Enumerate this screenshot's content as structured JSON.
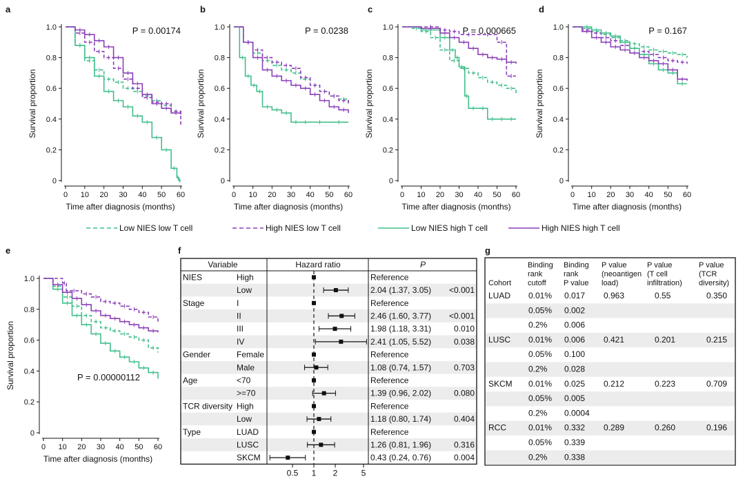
{
  "colors": {
    "green": "#3fbf8a",
    "purple": "#8a3fb8",
    "axis": "#111111",
    "stripe": "#ececec"
  },
  "axes": {
    "ylabel": "Survival proportion",
    "xlabel": "Time after diagnosis (months)",
    "yticks": [
      "0",
      "0.2",
      "0.4",
      "0.6",
      "0.8",
      "1.0"
    ],
    "xticks": [
      "0",
      "10",
      "20",
      "30",
      "40",
      "50",
      "60"
    ]
  },
  "legend": [
    {
      "label": "Low NIES low T cell",
      "color": "green",
      "dashed": true
    },
    {
      "label": "High NIES low T cell",
      "color": "purple",
      "dashed": true
    },
    {
      "label": "Low NIES high T cell",
      "color": "green",
      "dashed": false
    },
    {
      "label": "High NIES high T cell",
      "color": "purple",
      "dashed": false
    }
  ],
  "chart_data": [
    {
      "panel": "a",
      "type": "line",
      "xlabel": "Time after diagnosis (months)",
      "ylabel": "Survival proportion",
      "xlim": [
        0,
        60
      ],
      "ylim": [
        0,
        1
      ],
      "annotation": "P = 0.00174",
      "series": [
        {
          "name": "Low NIES low T cell",
          "x": [
            0,
            5,
            10,
            15,
            20,
            25,
            30,
            35,
            40,
            45,
            50,
            55,
            60
          ],
          "y": [
            1,
            0.88,
            0.78,
            0.72,
            0.66,
            0.64,
            0.6,
            0.58,
            0.55,
            0.52,
            0.49,
            0.45,
            0.42
          ]
        },
        {
          "name": "High NIES low T cell",
          "x": [
            0,
            5,
            10,
            15,
            20,
            25,
            30,
            35,
            40,
            45,
            50,
            55,
            60
          ],
          "y": [
            1,
            0.96,
            0.9,
            0.84,
            0.8,
            0.73,
            0.66,
            0.6,
            0.54,
            0.51,
            0.5,
            0.45,
            0.35
          ]
        },
        {
          "name": "Low NIES high T cell",
          "x": [
            0,
            5,
            10,
            15,
            20,
            25,
            30,
            35,
            40,
            45,
            50,
            55,
            58,
            59,
            60
          ],
          "y": [
            1,
            0.88,
            0.8,
            0.68,
            0.58,
            0.52,
            0.48,
            0.42,
            0.38,
            0.28,
            0.2,
            0.08,
            0.02,
            0.0,
            0.0
          ]
        },
        {
          "name": "High NIES high T cell",
          "x": [
            0,
            5,
            10,
            15,
            20,
            25,
            30,
            35,
            40,
            45,
            50,
            55,
            60
          ],
          "y": [
            1,
            0.98,
            0.95,
            0.91,
            0.87,
            0.8,
            0.7,
            0.63,
            0.56,
            0.5,
            0.47,
            0.44,
            0.43
          ]
        }
      ]
    },
    {
      "panel": "b",
      "type": "line",
      "xlabel": "Time after diagnosis (months)",
      "ylabel": "Survival proportion",
      "xlim": [
        0,
        60
      ],
      "ylim": [
        0,
        1
      ],
      "annotation": "P = 0.0238",
      "series": [
        {
          "name": "Low NIES low T cell",
          "x": [
            0,
            5,
            10,
            15,
            20,
            25,
            30,
            35,
            40,
            45,
            50,
            55,
            60
          ],
          "y": [
            1,
            0.9,
            0.83,
            0.78,
            0.75,
            0.72,
            0.7,
            0.66,
            0.62,
            0.58,
            0.55,
            0.53,
            0.5
          ]
        },
        {
          "name": "High NIES low T cell",
          "x": [
            0,
            5,
            10,
            15,
            20,
            25,
            30,
            35,
            40,
            45,
            50,
            55,
            60
          ],
          "y": [
            1,
            0.9,
            0.85,
            0.8,
            0.77,
            0.75,
            0.73,
            0.67,
            0.62,
            0.58,
            0.55,
            0.52,
            0.5
          ]
        },
        {
          "name": "Low NIES high T cell",
          "x": [
            0,
            3,
            6,
            9,
            12,
            15,
            20,
            25,
            30,
            35,
            40,
            50,
            60
          ],
          "y": [
            1,
            0.8,
            0.68,
            0.62,
            0.58,
            0.48,
            0.46,
            0.44,
            0.38,
            0.38,
            0.38,
            0.38,
            0.38
          ]
        },
        {
          "name": "High NIES high T cell",
          "x": [
            0,
            5,
            10,
            15,
            20,
            25,
            30,
            35,
            40,
            45,
            50,
            55,
            60
          ],
          "y": [
            1,
            0.9,
            0.8,
            0.72,
            0.68,
            0.65,
            0.62,
            0.6,
            0.56,
            0.52,
            0.48,
            0.46,
            0.44
          ]
        }
      ]
    },
    {
      "panel": "c",
      "type": "line",
      "xlabel": "Time after diagnosis (months)",
      "ylabel": "Survival proportion",
      "xlim": [
        0,
        60
      ],
      "ylim": [
        0,
        1
      ],
      "annotation": "P = 0.000665",
      "series": [
        {
          "name": "Low NIES low T cell",
          "x": [
            0,
            5,
            10,
            15,
            20,
            25,
            30,
            35,
            40,
            45,
            50,
            55,
            60
          ],
          "y": [
            1,
            0.99,
            0.97,
            0.93,
            0.85,
            0.78,
            0.73,
            0.7,
            0.67,
            0.64,
            0.62,
            0.6,
            0.56
          ]
        },
        {
          "name": "High NIES low T cell",
          "x": [
            0,
            10,
            20,
            25,
            30,
            40,
            50,
            55,
            60
          ],
          "y": [
            1,
            1,
            0.98,
            0.97,
            0.95,
            0.95,
            0.9,
            0.68,
            0.68
          ]
        },
        {
          "name": "Low NIES high T cell",
          "x": [
            0,
            10,
            20,
            25,
            28,
            30,
            33,
            35,
            40,
            45,
            50,
            55,
            60
          ],
          "y": [
            1,
            0.98,
            0.93,
            0.85,
            0.8,
            0.74,
            0.55,
            0.47,
            0.47,
            0.4,
            0.4,
            0.4,
            0.4
          ]
        },
        {
          "name": "High NIES high T cell",
          "x": [
            0,
            10,
            20,
            25,
            30,
            35,
            40,
            45,
            50,
            55,
            60
          ],
          "y": [
            1,
            0.99,
            0.96,
            0.93,
            0.9,
            0.86,
            0.82,
            0.8,
            0.79,
            0.77,
            0.76
          ]
        }
      ]
    },
    {
      "panel": "d",
      "type": "line",
      "xlabel": "Time after diagnosis (months)",
      "ylabel": "Survival proportion",
      "xlim": [
        0,
        60
      ],
      "ylim": [
        0,
        1
      ],
      "annotation": "P = 0.167",
      "series": [
        {
          "name": "Low NIES low T cell",
          "x": [
            0,
            5,
            10,
            15,
            20,
            25,
            30,
            35,
            40,
            45,
            50,
            55,
            60
          ],
          "y": [
            1,
            0.99,
            0.97,
            0.95,
            0.93,
            0.91,
            0.89,
            0.87,
            0.85,
            0.84,
            0.83,
            0.82,
            0.8
          ]
        },
        {
          "name": "High NIES low T cell",
          "x": [
            0,
            5,
            10,
            15,
            20,
            25,
            30,
            35,
            40,
            45,
            50,
            55,
            60
          ],
          "y": [
            1,
            0.98,
            0.96,
            0.93,
            0.91,
            0.88,
            0.86,
            0.84,
            0.82,
            0.8,
            0.78,
            0.77,
            0.76
          ]
        },
        {
          "name": "Low NIES high T cell",
          "x": [
            0,
            5,
            10,
            15,
            20,
            25,
            30,
            35,
            40,
            45,
            50,
            55,
            60
          ],
          "y": [
            1,
            1,
            0.98,
            0.96,
            0.94,
            0.9,
            0.86,
            0.82,
            0.76,
            0.72,
            0.7,
            0.63,
            0.63
          ]
        },
        {
          "name": "High NIES high T cell",
          "x": [
            0,
            5,
            10,
            15,
            20,
            25,
            30,
            35,
            40,
            45,
            50,
            55,
            60
          ],
          "y": [
            1,
            0.97,
            0.93,
            0.9,
            0.87,
            0.85,
            0.83,
            0.8,
            0.78,
            0.76,
            0.72,
            0.66,
            0.65
          ]
        }
      ]
    },
    {
      "panel": "e",
      "type": "line",
      "xlabel": "Time after diagnosis (months)",
      "ylabel": "Survival proportion",
      "xlim": [
        0,
        60
      ],
      "ylim": [
        0,
        1
      ],
      "annotation": "P = 0.00000112",
      "series": [
        {
          "name": "Low NIES low T cell",
          "x": [
            0,
            5,
            10,
            15,
            20,
            25,
            30,
            35,
            40,
            45,
            50,
            55,
            60
          ],
          "y": [
            1,
            0.95,
            0.88,
            0.82,
            0.76,
            0.72,
            0.68,
            0.66,
            0.64,
            0.62,
            0.6,
            0.55,
            0.52
          ]
        },
        {
          "name": "High NIES low T cell",
          "x": [
            0,
            10,
            12,
            20,
            25,
            30,
            35,
            40,
            45,
            50,
            55,
            60
          ],
          "y": [
            1,
            0.97,
            0.92,
            0.9,
            0.88,
            0.85,
            0.84,
            0.82,
            0.8,
            0.78,
            0.75,
            0.72
          ]
        },
        {
          "name": "Low NIES high T cell",
          "x": [
            0,
            5,
            10,
            15,
            20,
            25,
            30,
            35,
            40,
            45,
            50,
            55,
            60
          ],
          "y": [
            1,
            0.93,
            0.84,
            0.76,
            0.7,
            0.64,
            0.58,
            0.53,
            0.49,
            0.46,
            0.42,
            0.39,
            0.35
          ]
        },
        {
          "name": "High NIES high T cell",
          "x": [
            0,
            5,
            10,
            15,
            20,
            25,
            30,
            35,
            40,
            45,
            50,
            55,
            60
          ],
          "y": [
            1,
            0.96,
            0.91,
            0.87,
            0.83,
            0.79,
            0.76,
            0.74,
            0.72,
            0.7,
            0.68,
            0.66,
            0.65
          ]
        }
      ]
    }
  ],
  "forest": {
    "label": "f",
    "headers": [
      "Variable",
      "Hazard ratio",
      "P"
    ],
    "axis_ticks": [
      "0.5",
      "1",
      "2",
      "5"
    ],
    "rows": [
      {
        "var": "NIES",
        "level": "High",
        "text": "Reference",
        "p": "",
        "hr": 1,
        "lo": 1,
        "hi": 1
      },
      {
        "var": "",
        "level": "Low",
        "text": "2.04 (1.37, 3.05)",
        "p": "<0.001",
        "hr": 2.04,
        "lo": 1.37,
        "hi": 3.05
      },
      {
        "var": "Stage",
        "level": "I",
        "text": "Reference",
        "p": "",
        "hr": 1,
        "lo": 1,
        "hi": 1
      },
      {
        "var": "",
        "level": "II",
        "text": "2.46 (1.60, 3.77)",
        "p": "<0.001",
        "hr": 2.46,
        "lo": 1.6,
        "hi": 3.77
      },
      {
        "var": "",
        "level": "III",
        "text": "1.98 (1.18, 3.31)",
        "p": "0.010",
        "hr": 1.98,
        "lo": 1.18,
        "hi": 3.31
      },
      {
        "var": "",
        "level": "IV",
        "text": "2.41 (1.05, 5.52)",
        "p": "0.038",
        "hr": 2.41,
        "lo": 1.05,
        "hi": 5.52
      },
      {
        "var": "Gender",
        "level": "Female",
        "text": "Reference",
        "p": "",
        "hr": 1,
        "lo": 1,
        "hi": 1
      },
      {
        "var": "",
        "level": "Male",
        "text": "1.08 (0.74, 1.57)",
        "p": "0.703",
        "hr": 1.08,
        "lo": 0.74,
        "hi": 1.57
      },
      {
        "var": "Age",
        "level": "<70",
        "text": "Reference",
        "p": "",
        "hr": 1,
        "lo": 1,
        "hi": 1
      },
      {
        "var": "",
        "level": ">=70",
        "text": "1.39 (0.96, 2.02)",
        "p": "0.080",
        "hr": 1.39,
        "lo": 0.96,
        "hi": 2.02
      },
      {
        "var": "TCR diversity",
        "level": "High",
        "text": "Reference",
        "p": "",
        "hr": 1,
        "lo": 1,
        "hi": 1
      },
      {
        "var": "",
        "level": "Low",
        "text": "1.18 (0.80, 1.74)",
        "p": "0.404",
        "hr": 1.18,
        "lo": 0.8,
        "hi": 1.74
      },
      {
        "var": "Type",
        "level": "LUAD",
        "text": "Reference",
        "p": "",
        "hr": 1,
        "lo": 1,
        "hi": 1
      },
      {
        "var": "",
        "level": "LUSC",
        "text": "1.26 (0.81, 1.96)",
        "p": "0.316",
        "hr": 1.26,
        "lo": 0.81,
        "hi": 1.96
      },
      {
        "var": "",
        "level": "SKCM",
        "text": "0.43 (0.24, 0.76)",
        "p": "0.004",
        "hr": 0.43,
        "lo": 0.24,
        "hi": 0.76
      }
    ]
  },
  "table_g": {
    "label": "g",
    "headers": [
      [
        "Cohort"
      ],
      [
        "Binding",
        "rank",
        "cutoff"
      ],
      [
        "Binding",
        "rank",
        "P value"
      ],
      [
        "P value",
        "(neoantigen",
        "load)"
      ],
      [
        "P value",
        "(T cell",
        "infiltration)"
      ],
      [
        "P value",
        "(TCR",
        "diversity)"
      ]
    ],
    "rows": [
      [
        "LUAD",
        "0.01%",
        "0.017",
        "0.963",
        "0.55",
        "0.350"
      ],
      [
        "",
        "0.05%",
        "0.002",
        "",
        "",
        ""
      ],
      [
        "",
        "0.2%",
        "0.006",
        "",
        "",
        ""
      ],
      [
        "LUSC",
        "0.01%",
        "0.006",
        "0.421",
        "0.201",
        "0.215"
      ],
      [
        "",
        "0.05%",
        "0.100",
        "",
        "",
        ""
      ],
      [
        "",
        "0.2%",
        "0.028",
        "",
        "",
        ""
      ],
      [
        "SKCM",
        "0.01%",
        "0.025",
        "0.212",
        "0.223",
        "0.709"
      ],
      [
        "",
        "0.05%",
        "0.005",
        "",
        "",
        ""
      ],
      [
        "",
        "0.2%",
        "0.0004",
        "",
        "",
        ""
      ],
      [
        "RCC",
        "0.01%",
        "0.332",
        "0.289",
        "0.260",
        "0.196"
      ],
      [
        "",
        "0.05%",
        "0.339",
        "",
        "",
        ""
      ],
      [
        "",
        "0.2%",
        "0.338",
        "",
        "",
        ""
      ]
    ]
  }
}
